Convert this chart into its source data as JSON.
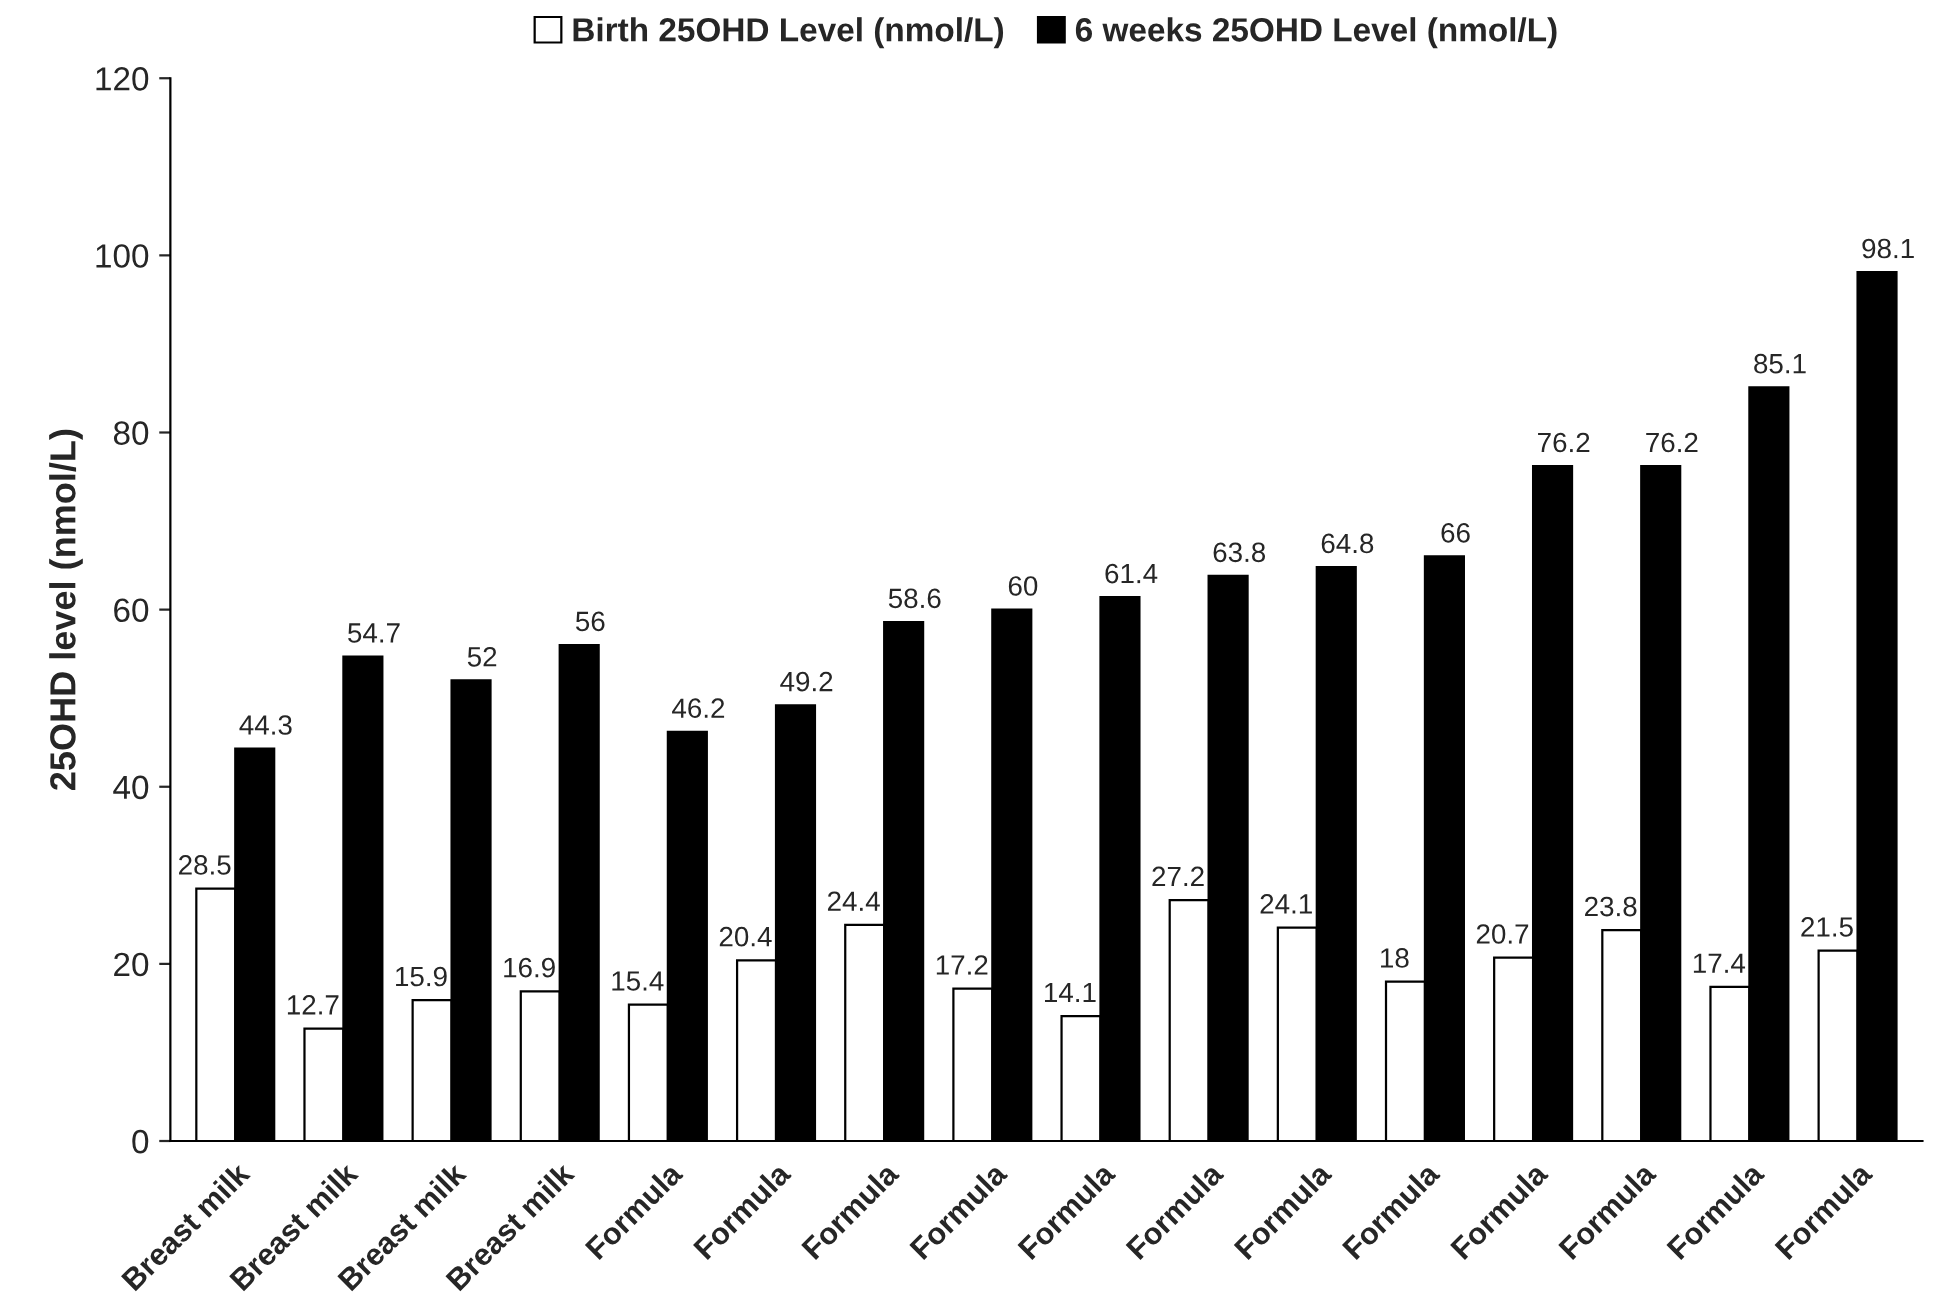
{
  "chart_data": {
    "type": "bar",
    "ylabel": "25OHD level (nmol/L)",
    "categories": [
      "Breast milk",
      "Breast milk",
      "Breast milk",
      "Breast milk",
      "Formula",
      "Formula",
      "Formula",
      "Formula",
      "Formula",
      "Formula",
      "Formula",
      "Formula",
      "Formula",
      "Formula",
      "Formula",
      "Formula"
    ],
    "series": [
      {
        "name": "Birth 25OHD Level (nmol/L)",
        "color": "#ffffff",
        "values": [
          28.5,
          12.7,
          15.9,
          16.9,
          15.4,
          20.4,
          24.4,
          17.2,
          14.1,
          27.2,
          24.1,
          18,
          20.7,
          23.8,
          17.4,
          21.5
        ]
      },
      {
        "name": "6 weeks 25OHD Level (nmol/L)",
        "color": "#000000",
        "values": [
          44.3,
          54.7,
          52,
          56,
          46.2,
          49.2,
          58.6,
          60,
          61.4,
          63.8,
          64.8,
          66,
          76.2,
          76.2,
          85.1,
          98.1
        ]
      }
    ],
    "ylim": [
      0,
      120
    ],
    "yticks": [
      0,
      20,
      40,
      60,
      80,
      100,
      120
    ],
    "data_labels": true,
    "legend": "top",
    "grid": false
  }
}
